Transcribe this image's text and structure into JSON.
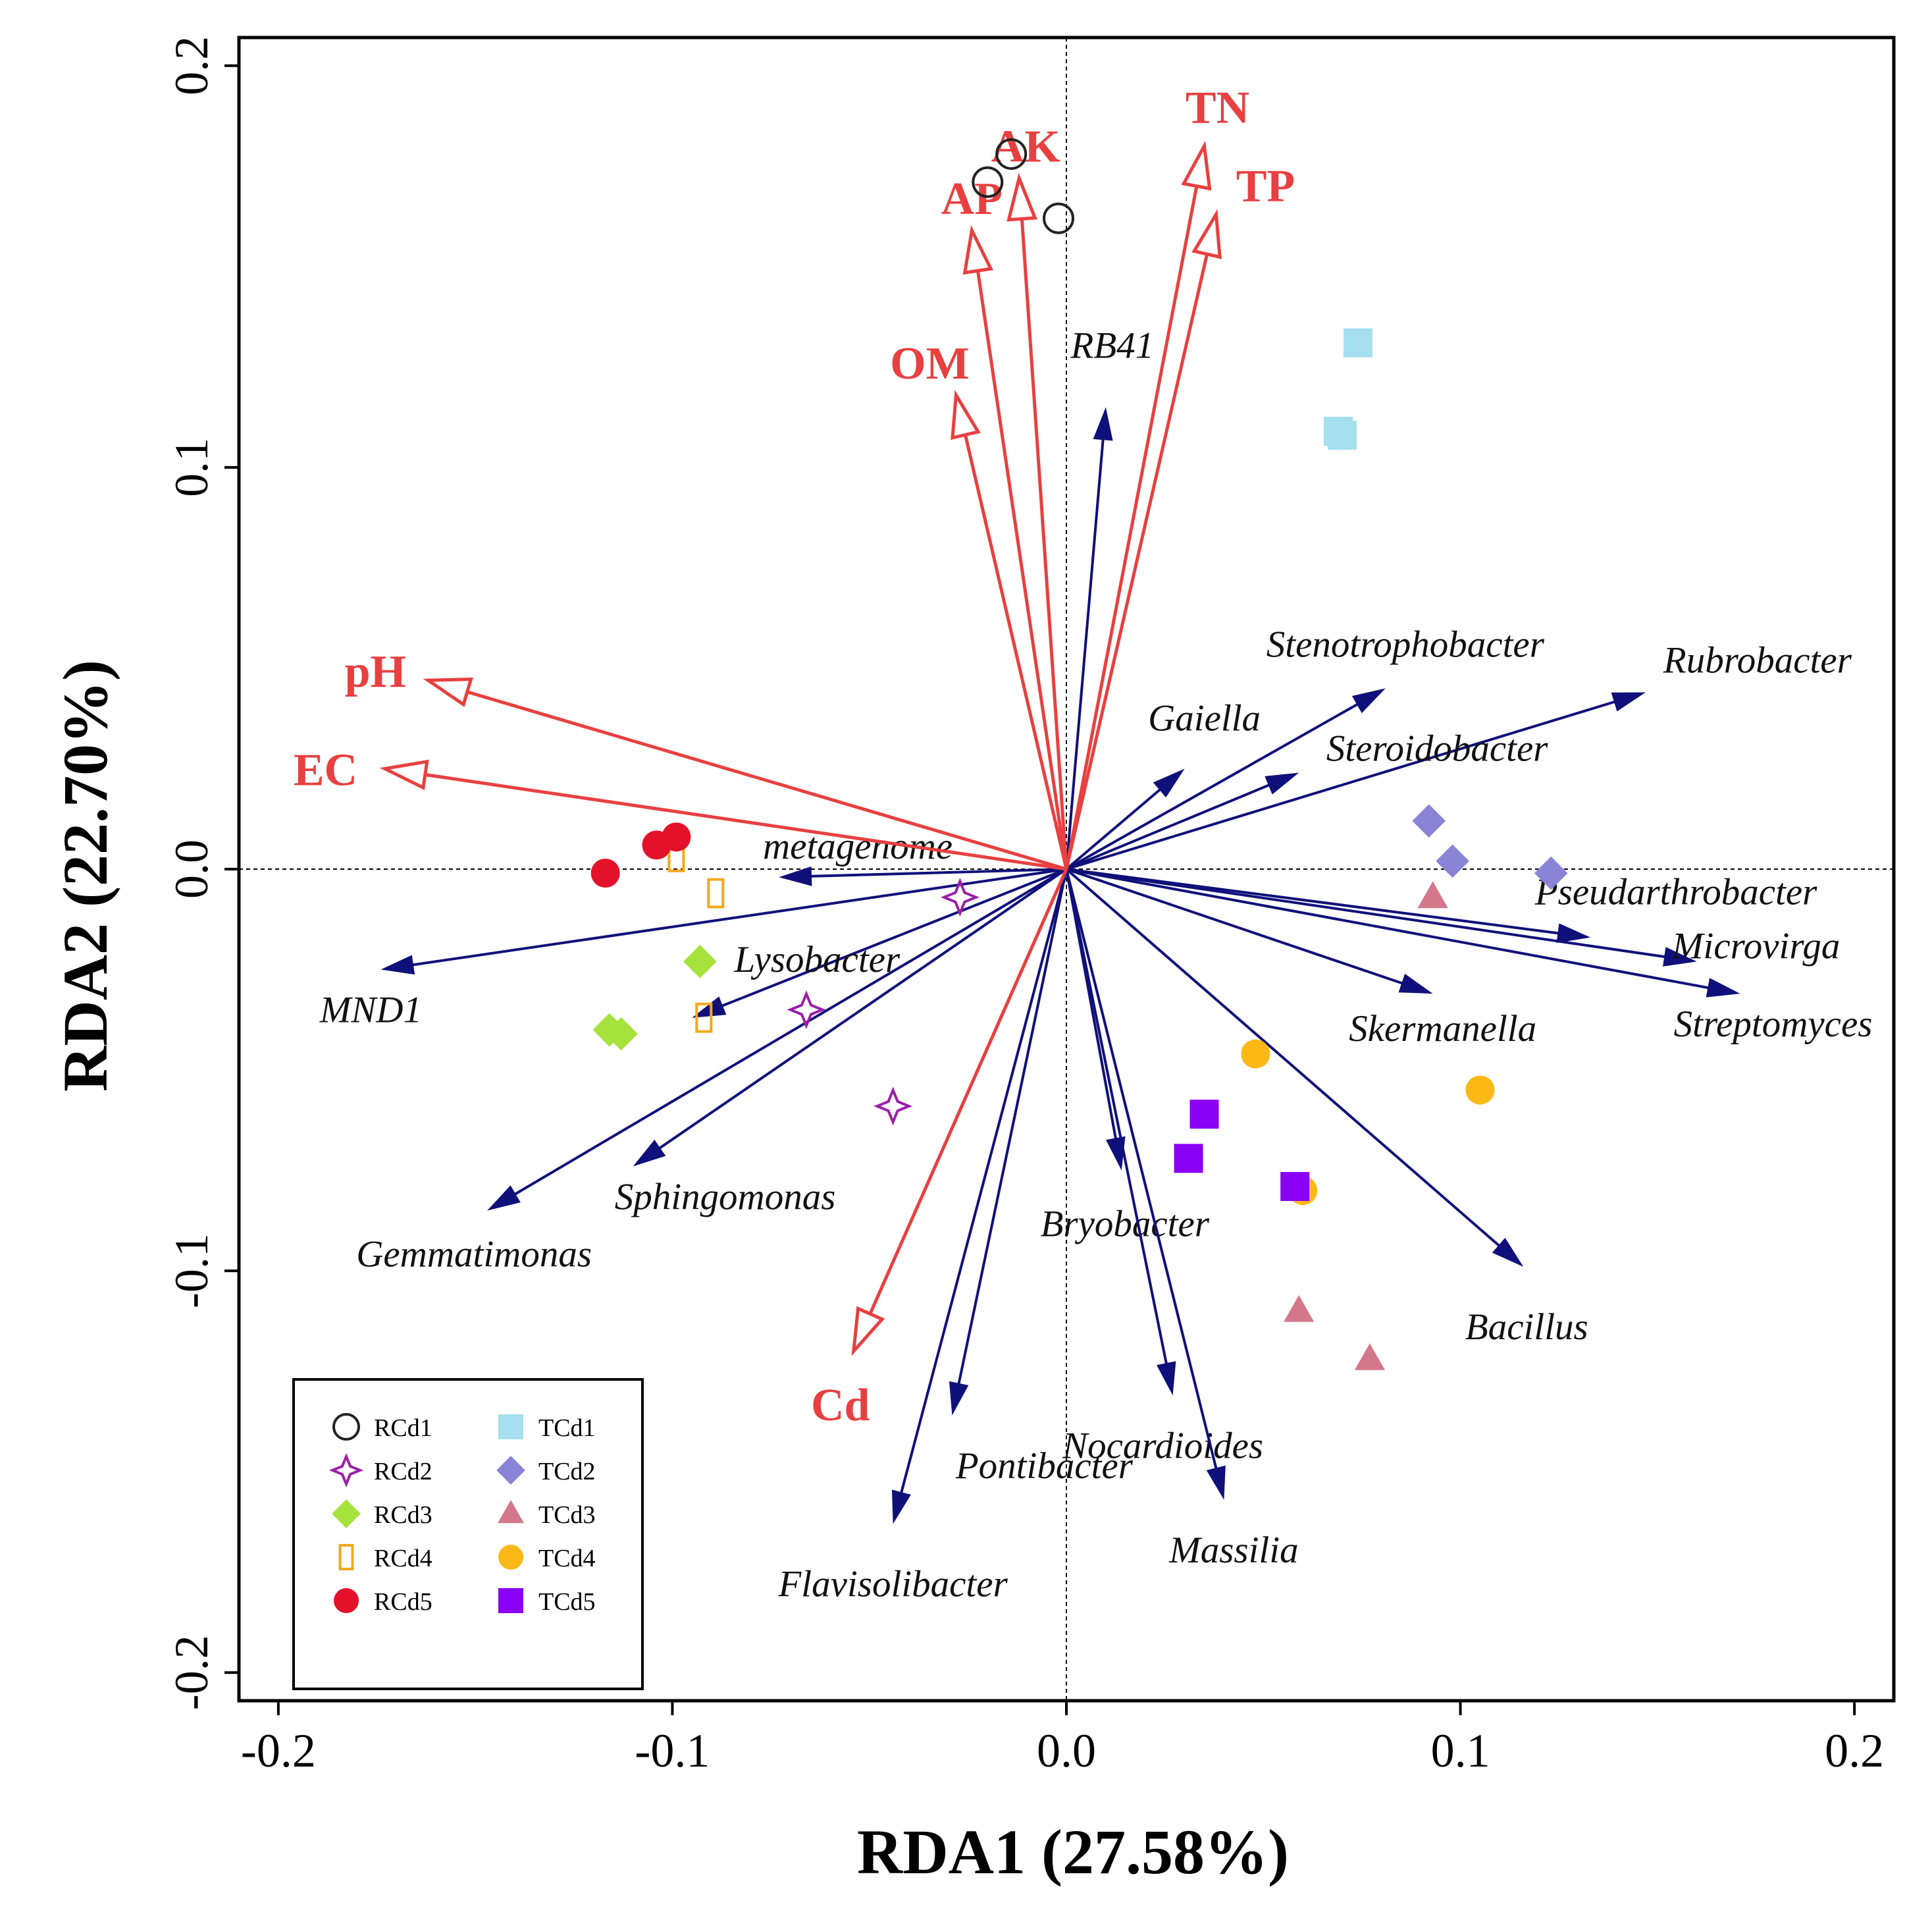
{
  "chart_data": {
    "type": "scatter",
    "subtype": "rda-biplot",
    "xlabel": "RDA1 (27.58%)",
    "ylabel": "RDA2 (22.70%)",
    "xlim": [
      -0.21,
      0.21
    ],
    "ylim": [
      -0.207,
      0.207
    ],
    "xticks": [
      -0.2,
      -0.1,
      0.0,
      0.1,
      0.2
    ],
    "yticks": [
      -0.2,
      -0.1,
      0.0,
      0.1,
      0.2
    ],
    "xtick_labels": [
      "-0.2",
      "-0.1",
      "0.0",
      "0.1",
      "0.2"
    ],
    "ytick_labels": [
      "-0.2",
      "-0.1",
      "0.0",
      "0.1",
      "0.2"
    ],
    "reference_lines": "dashed lines at x = 0 and y = 0",
    "env_color": "#e84040",
    "genus_color": "#10107a",
    "env_vectors": [
      {
        "name": "TN",
        "x": 0.035,
        "y": 0.18
      },
      {
        "name": "TP",
        "x": 0.038,
        "y": 0.163
      },
      {
        "name": "AK",
        "x": -0.012,
        "y": 0.172
      },
      {
        "name": "AP",
        "x": -0.024,
        "y": 0.159
      },
      {
        "name": "OM",
        "x": -0.028,
        "y": 0.118
      },
      {
        "name": "pH",
        "x": -0.162,
        "y": 0.047
      },
      {
        "name": "EC",
        "x": -0.173,
        "y": 0.025
      },
      {
        "name": "Cd",
        "x": -0.054,
        "y": -0.12
      }
    ],
    "genus_vectors": [
      {
        "name": "RB41",
        "x": 0.01,
        "y": 0.115
      },
      {
        "name": "Stenotrophobacter",
        "x": 0.081,
        "y": 0.045
      },
      {
        "name": "Rubrobacter",
        "x": 0.147,
        "y": 0.044
      },
      {
        "name": "Gaiella",
        "x": 0.03,
        "y": 0.025
      },
      {
        "name": "Steroidobacter",
        "x": 0.059,
        "y": 0.024
      },
      {
        "name": "Pseudarthrobacter",
        "x": 0.133,
        "y": -0.017
      },
      {
        "name": "Microvirga",
        "x": 0.16,
        "y": -0.023
      },
      {
        "name": "Streptomyces",
        "x": 0.171,
        "y": -0.031
      },
      {
        "name": "Skermanella",
        "x": 0.093,
        "y": -0.031
      },
      {
        "name": "Bacillus",
        "x": 0.116,
        "y": -0.099
      },
      {
        "name": "Bryobacter",
        "x": 0.014,
        "y": -0.075
      },
      {
        "name": "Nocardioides",
        "x": 0.027,
        "y": -0.131
      },
      {
        "name": "Massilia",
        "x": 0.04,
        "y": -0.157
      },
      {
        "name": "Pontibacter",
        "x": -0.029,
        "y": -0.136
      },
      {
        "name": "Flavisolibacter",
        "x": -0.044,
        "y": -0.163
      },
      {
        "name": "Gemmatimonas",
        "x": -0.147,
        "y": -0.085
      },
      {
        "name": "Sphingomonas",
        "x": -0.11,
        "y": -0.074
      },
      {
        "name": "Lysobacter",
        "x": -0.095,
        "y": -0.037
      },
      {
        "name": "MND1",
        "x": -0.174,
        "y": -0.025
      },
      {
        "name": "metagenome",
        "x": -0.073,
        "y": -0.002
      }
    ],
    "samples": [
      {
        "group": "RCd1",
        "marker": "circle-open",
        "color": "#222222",
        "points": [
          [
            -0.02,
            0.171
          ],
          [
            -0.014,
            0.178
          ],
          [
            -0.002,
            0.162
          ]
        ]
      },
      {
        "group": "RCd2",
        "marker": "star4-open",
        "color": "#9b1fa8",
        "points": [
          [
            -0.027,
            -0.007
          ],
          [
            -0.066,
            -0.035
          ],
          [
            -0.044,
            -0.059
          ]
        ]
      },
      {
        "group": "RCd3",
        "marker": "diamond",
        "color": "#a6e23c",
        "points": [
          [
            -0.093,
            -0.023
          ],
          [
            -0.116,
            -0.04
          ],
          [
            -0.113,
            -0.041
          ]
        ]
      },
      {
        "group": "RCd4",
        "marker": "rect-open",
        "color": "#f3a81c",
        "points": [
          [
            -0.099,
            0.003
          ],
          [
            -0.089,
            -0.006
          ],
          [
            -0.092,
            -0.037
          ]
        ]
      },
      {
        "group": "RCd5",
        "marker": "circle",
        "color": "#e3122a",
        "points": [
          [
            -0.117,
            -0.001
          ],
          [
            -0.104,
            0.006
          ],
          [
            -0.099,
            0.008
          ]
        ]
      },
      {
        "group": "TCd1",
        "marker": "square",
        "color": "#a6dff0",
        "points": [
          [
            0.074,
            0.131
          ],
          [
            0.069,
            0.109
          ],
          [
            0.07,
            0.108
          ]
        ]
      },
      {
        "group": "TCd2",
        "marker": "diamond",
        "color": "#8a84d6",
        "points": [
          [
            0.092,
            0.012
          ],
          [
            0.098,
            0.002
          ],
          [
            0.123,
            -0.001
          ]
        ]
      },
      {
        "group": "TCd3",
        "marker": "triangle",
        "color": "#d3788a",
        "points": [
          [
            0.093,
            -0.007
          ],
          [
            0.059,
            -0.11
          ],
          [
            0.077,
            -0.122
          ]
        ]
      },
      {
        "group": "TCd4",
        "marker": "circle",
        "color": "#fbb817",
        "points": [
          [
            0.048,
            -0.046
          ],
          [
            0.105,
            -0.055
          ],
          [
            0.06,
            -0.08
          ]
        ]
      },
      {
        "group": "TCd5",
        "marker": "square",
        "color": "#8a02f5",
        "points": [
          [
            0.035,
            -0.061
          ],
          [
            0.031,
            -0.072
          ],
          [
            0.058,
            -0.079
          ]
        ]
      }
    ],
    "legend": {
      "position": "bottom-left",
      "left_column": [
        "RCd1",
        "RCd2",
        "RCd3",
        "RCd4",
        "RCd5"
      ],
      "right_column": [
        "TCd1",
        "TCd2",
        "TCd3",
        "TCd4",
        "TCd5"
      ]
    }
  }
}
